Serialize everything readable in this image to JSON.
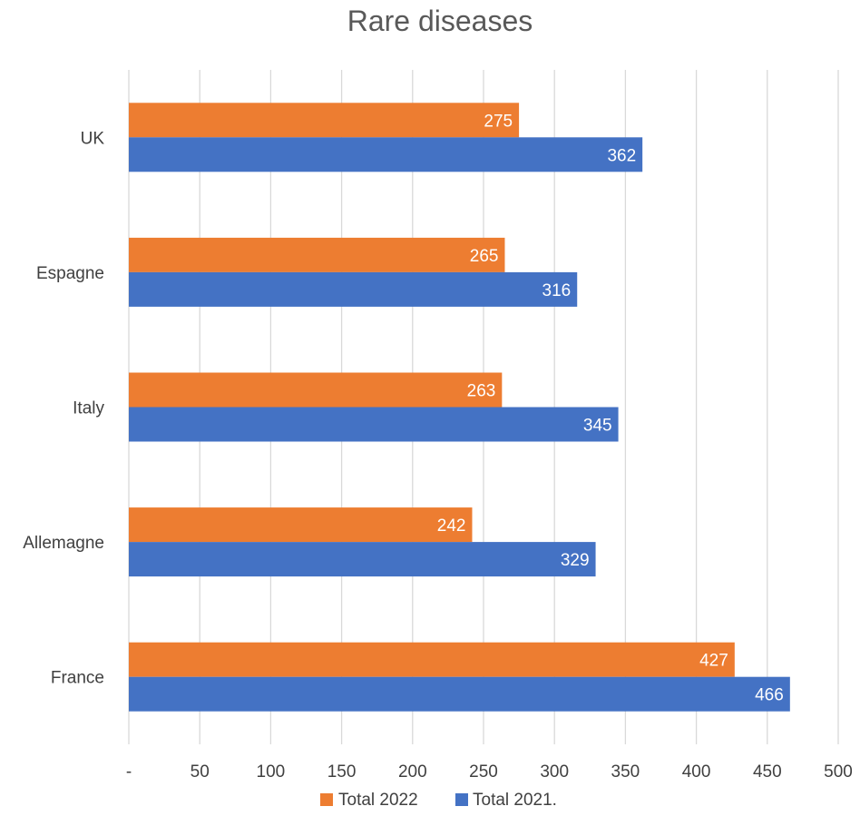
{
  "chart_data": {
    "type": "bar",
    "orientation": "horizontal",
    "title": "Rare diseases",
    "xlabel": "",
    "ylabel": "",
    "categories": [
      "UK",
      "Espagne",
      "Italy",
      "Allemagne",
      "France"
    ],
    "series": [
      {
        "name": "Total 2022",
        "color": "#ED7D31",
        "values": [
          275,
          265,
          263,
          242,
          427
        ]
      },
      {
        "name": "Total 2021.",
        "color": "#4472C4",
        "values": [
          362,
          316,
          345,
          329,
          466
        ]
      }
    ],
    "xlim": [
      0,
      500
    ],
    "x_ticks": [
      "-",
      "50",
      "100",
      "150",
      "200",
      "250",
      "300",
      "350",
      "400",
      "450",
      "500"
    ],
    "grid": true,
    "legend_position": "bottom"
  }
}
